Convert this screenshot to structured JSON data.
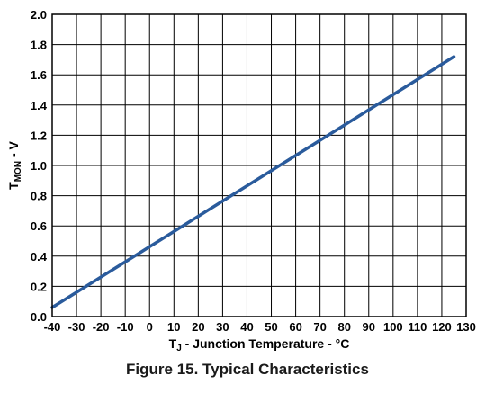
{
  "figure": {
    "caption": "Figure 15.  Typical Characteristics"
  },
  "chart_data": {
    "type": "line",
    "xlabel_sub": "J",
    "xlabel_main": "T",
    "xlabel_rest": " - Junction Temperature - °C",
    "ylabel_main": "T",
    "ylabel_sub": "MON",
    "ylabel_rest": " - V",
    "xlim": [
      -40,
      130
    ],
    "ylim": [
      0.0,
      2.0
    ],
    "x_ticks": [
      -40,
      -30,
      -20,
      -10,
      0,
      10,
      20,
      30,
      40,
      50,
      60,
      70,
      80,
      90,
      100,
      110,
      120,
      130
    ],
    "x_tick_labels": [
      "-40",
      "-30",
      "-20",
      "-10",
      "0",
      "10",
      "20",
      "30",
      "40",
      "50",
      "60",
      "70",
      "80",
      "90",
      "100",
      "110",
      "120",
      "130"
    ],
    "y_ticks": [
      0.0,
      0.2,
      0.4,
      0.6,
      0.8,
      1.0,
      1.2,
      1.4,
      1.6,
      1.8,
      2.0
    ],
    "y_tick_labels": [
      "0.0",
      "0.2",
      "0.4",
      "0.6",
      "0.8",
      "1.0",
      "1.2",
      "1.4",
      "1.6",
      "1.8",
      "2.0"
    ],
    "grid": true,
    "series": [
      {
        "x": [
          -40,
          125
        ],
        "y": [
          0.06,
          1.72
        ],
        "color": "#2a5b9c"
      }
    ]
  }
}
